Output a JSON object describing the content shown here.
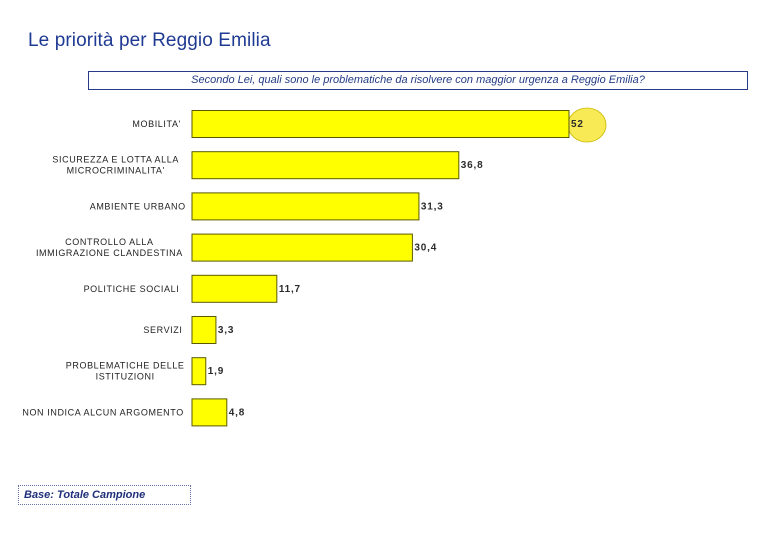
{
  "title": "Le priorità per Reggio Emilia",
  "question": "Secondo Lei, quali sono le problematiche da risolvere con maggior urgenza a Reggio Emilia?",
  "base_note": "Base: Totale Campione",
  "colors": {
    "bar_fill": "#ffff00",
    "bar_stroke": "#5a5a00",
    "highlight_fill": "#f7ea55",
    "title": "#1f3a93"
  },
  "chart_data": {
    "type": "bar",
    "orientation": "horizontal",
    "categories": [
      [
        "MOBILITA'"
      ],
      [
        "SICUREZZA E LOTTA ALLA",
        "MICROCRIMINALITA'"
      ],
      [
        "AMBIENTE URBANO"
      ],
      [
        "CONTROLLO ALLA",
        "IMMIGRAZIONE CLANDESTINA"
      ],
      [
        "POLITICHE SOCIALI"
      ],
      [
        "SERVIZI"
      ],
      [
        "PROBLEMATICHE DELLE",
        "ISTITUZIONI"
      ],
      [
        "NON INDICA ALCUN ARGOMENTO"
      ]
    ],
    "values": [
      52,
      36.8,
      31.3,
      30.4,
      11.7,
      3.3,
      1.9,
      4.8
    ],
    "value_labels": [
      "52",
      "36,8",
      "31,3",
      "30,4",
      "11,7",
      "3,3",
      "1,9",
      "4,8"
    ],
    "highlighted_index": 0,
    "xlim": [
      0,
      52
    ],
    "grid": false,
    "legend": "none"
  }
}
